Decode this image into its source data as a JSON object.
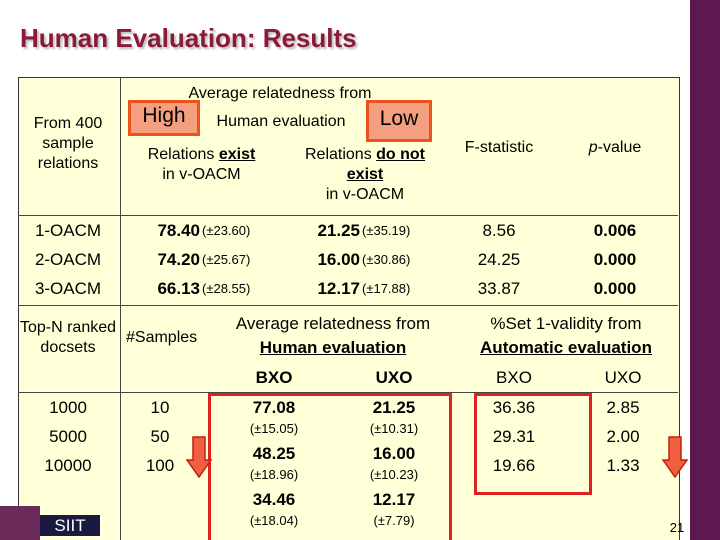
{
  "header": {
    "title": "Human Evaluation: Results"
  },
  "table1": {
    "corner": "From 400 sample relations",
    "group_header": "Average relatedness from",
    "high": "High",
    "human_eval": "Human evaluation",
    "low": "Low",
    "columns": [
      {
        "pre": "Relations",
        "em": "exist",
        "post": "in v-OACM"
      },
      {
        "pre": "Relations",
        "em": "do not exist",
        "post": "in v-OACM"
      },
      "F-statistic",
      {
        "italic": "p",
        "rest": "-value"
      }
    ],
    "rows": [
      [
        "1-OACM",
        "78.40",
        "(±23.60)",
        "21.25",
        "(±35.19)",
        "8.56",
        "0.006"
      ],
      [
        "2-OACM",
        "74.20",
        "(±25.67)",
        "16.00",
        "(±30.86)",
        "24.25",
        "0.000"
      ],
      [
        "3-OACM",
        "66.13",
        "(±28.55)",
        "12.17",
        "(±17.88)",
        "33.87",
        "0.000"
      ]
    ]
  },
  "table2": {
    "columns": [
      "Top-N ranked docsets",
      "#Samples"
    ],
    "human": {
      "title": "Average relatedness from",
      "subtitle": "Human evaluation",
      "sub": [
        "BXO",
        "UXO"
      ]
    },
    "automatic": {
      "title": "%Set 1-validity from",
      "subtitle": "Automatic evaluation",
      "sub": [
        "BXO",
        "UXO"
      ]
    },
    "rows": [
      [
        "1000",
        "10",
        "77.08",
        "(±15.05)",
        "21.25",
        "(±10.31)",
        "36.36",
        "2.85"
      ],
      [
        "5000",
        "50",
        "48.25",
        "(±18.96)",
        "16.00",
        "(±10.23)",
        "29.31",
        "2.00"
      ],
      [
        "10000",
        "100",
        "34.46",
        "(±18.04)",
        "12.17",
        "(±7.79)",
        "19.66",
        "1.33"
      ]
    ]
  },
  "footer": {
    "logo": "SIIT",
    "page": "21"
  }
}
